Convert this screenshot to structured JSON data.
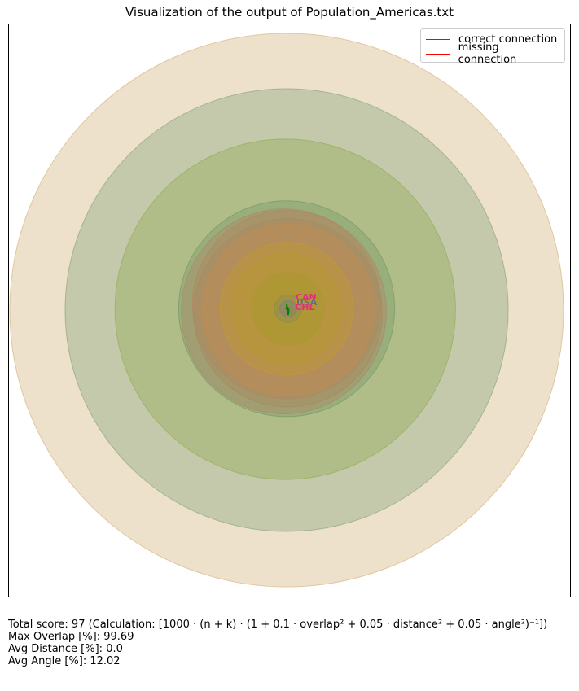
{
  "chart_data": {
    "type": "scatter",
    "title": "Visualization of the output of Population_Americas.txt",
    "legend": {
      "placement": "top-right",
      "entries": [
        {
          "label": "correct connection",
          "color": "#008000"
        },
        {
          "label": "missing connection",
          "color": "#ff0000"
        }
      ]
    },
    "grid": false,
    "circles": [
      {
        "cx": 0.0,
        "cy": 0.0,
        "r": 1.0,
        "color": "#d9bd8f"
      },
      {
        "cx": 0.0,
        "cy": 0.0,
        "r": 0.8,
        "color": "#93ad83"
      },
      {
        "cx": -0.005,
        "cy": 0.003,
        "r": 0.615,
        "color": "#97b060"
      },
      {
        "cx": 0.0,
        "cy": 0.005,
        "r": 0.39,
        "color": "#7d9c6a"
      },
      {
        "cx": -0.01,
        "cy": -0.005,
        "r": 0.37,
        "color": "#ad8b6a"
      },
      {
        "cx": 0.0,
        "cy": 0.02,
        "r": 0.34,
        "color": "#b28860"
      },
      {
        "cx": 0.005,
        "cy": -0.01,
        "r": 0.34,
        "color": "#a88a60"
      },
      {
        "cx": 0.005,
        "cy": 0.0,
        "r": 0.31,
        "color": "#c08c50"
      },
      {
        "cx": 0.0,
        "cy": 0.005,
        "r": 0.24,
        "color": "#c29a35"
      },
      {
        "cx": 0.0,
        "cy": 0.005,
        "r": 0.2,
        "color": "#b39a30"
      },
      {
        "cx": 0.005,
        "cy": 0.005,
        "r": 0.13,
        "color": "#a8982a"
      },
      {
        "cx": 0.005,
        "cy": 0.005,
        "r": 0.05,
        "color": "#8c8c50"
      },
      {
        "cx": 0.005,
        "cy": 0.005,
        "r": 0.03,
        "color": "#7f7f7f"
      }
    ],
    "connections": [
      {
        "x1": 0.0,
        "y1": 0.02,
        "x2": 0.005,
        "y2": -0.015,
        "status": "correct"
      },
      {
        "x1": -0.002,
        "y1": 0.01,
        "x2": 0.008,
        "y2": -0.005,
        "status": "correct"
      },
      {
        "x1": 0.008,
        "y1": 0.0,
        "x2": 0.005,
        "y2": -0.018,
        "status": "correct"
      },
      {
        "x1": -0.004,
        "y1": 0.005,
        "x2": 0.01,
        "y2": 0.005,
        "status": "correct"
      },
      {
        "x1": 0.003,
        "y1": 0.012,
        "x2": 0.006,
        "y2": -0.012,
        "status": "correct"
      }
    ],
    "labels": [
      {
        "text": "CAN",
        "x": 0.032,
        "y": 0.035,
        "color": "#e0307a"
      },
      {
        "text": "MEX",
        "x": 0.03,
        "y": 0.017,
        "color": "#d49a1a"
      },
      {
        "text": "USA",
        "x": 0.035,
        "y": 0.017,
        "color": "#607080"
      },
      {
        "text": "CHL",
        "x": 0.03,
        "y": 0.0,
        "color": "#e0307a"
      }
    ]
  },
  "footer": {
    "total_score_prefix": "Total score: 97  (Calculation: ",
    "formula": "[1000 · (n + k) · (1 + 0.1 · overlap² + 0.05 · distance² + 0.05 · angle²)⁻¹])",
    "max_overlap": "Max Overlap [%]: 99.69",
    "avg_distance": "Avg Distance [%]: 0.0",
    "avg_angle": "Avg Angle [%]: 12.02"
  }
}
